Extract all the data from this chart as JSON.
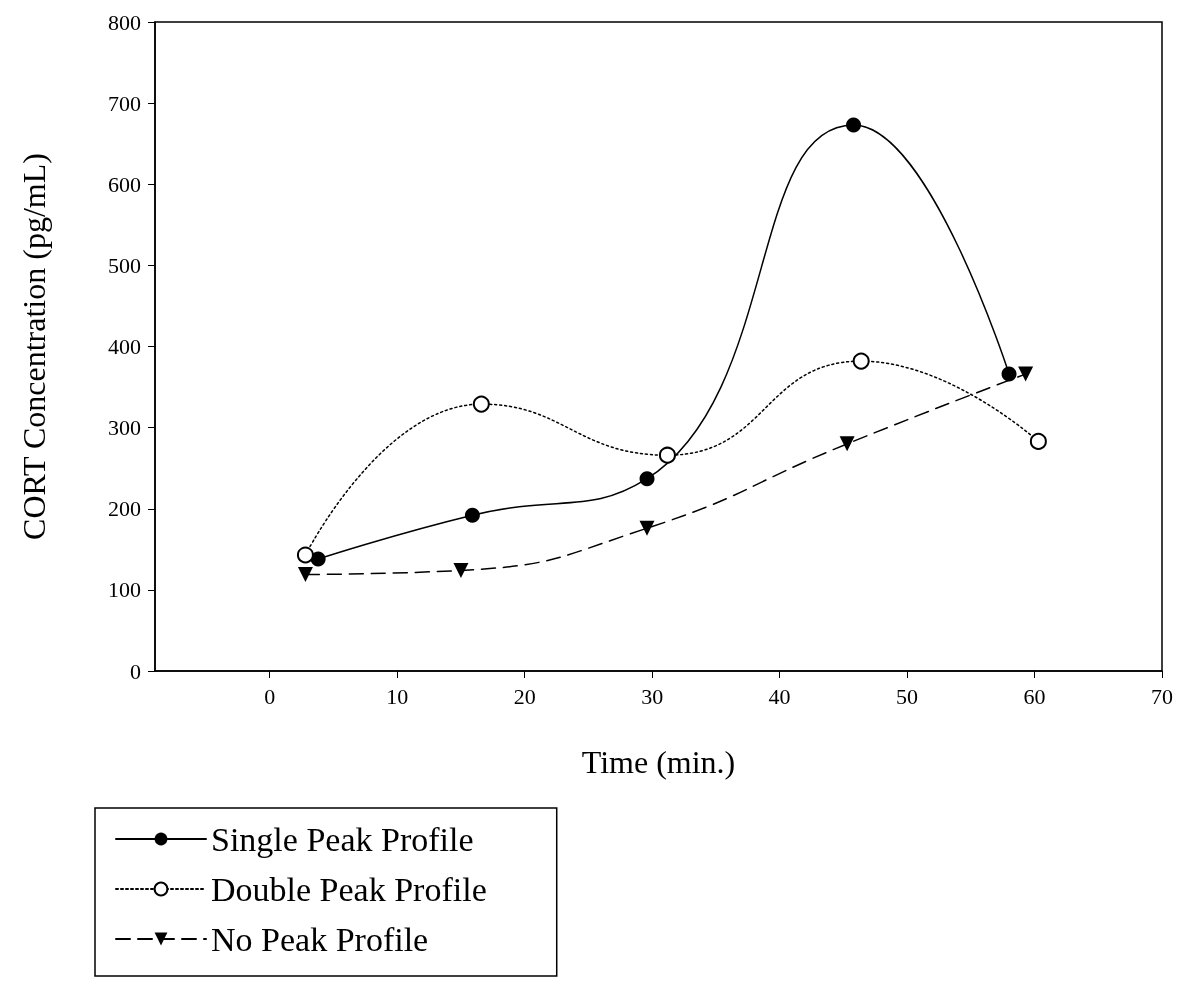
{
  "chart_data": {
    "type": "line",
    "xlabel": "Time (min.)",
    "ylabel": "CORT Concentration (pg/mL)",
    "xlim": [
      -9,
      70
    ],
    "xticks": [
      0,
      10,
      20,
      30,
      40,
      50,
      60,
      70
    ],
    "ylim": [
      0,
      800
    ],
    "yticks": [
      0,
      100,
      200,
      300,
      400,
      500,
      600,
      700,
      800
    ],
    "grid": false,
    "legend": "bottom left",
    "series": [
      {
        "name": "Single Peak Profile",
        "color": "#000000",
        "marker": "circle",
        "line_style": "solid",
        "x": [
          3.8,
          15.9,
          29.6,
          45.8,
          58.0
        ],
        "values": [
          138,
          192,
          237,
          673,
          366
        ]
      },
      {
        "name": "Double Peak Profile",
        "color": "#000000",
        "marker": "open circle",
        "line_style": "dotted",
        "x": [
          2.8,
          16.6,
          31.2,
          46.4,
          60.3
        ],
        "values": [
          143,
          329,
          266,
          382,
          283
        ]
      },
      {
        "name": "No Peak Profile",
        "color": "#000000",
        "marker": "triangle down",
        "line_style": "dashed",
        "x": [
          2.8,
          15.0,
          29.6,
          45.3,
          59.3
        ],
        "values": [
          119,
          124,
          176,
          280,
          366
        ]
      }
    ]
  }
}
